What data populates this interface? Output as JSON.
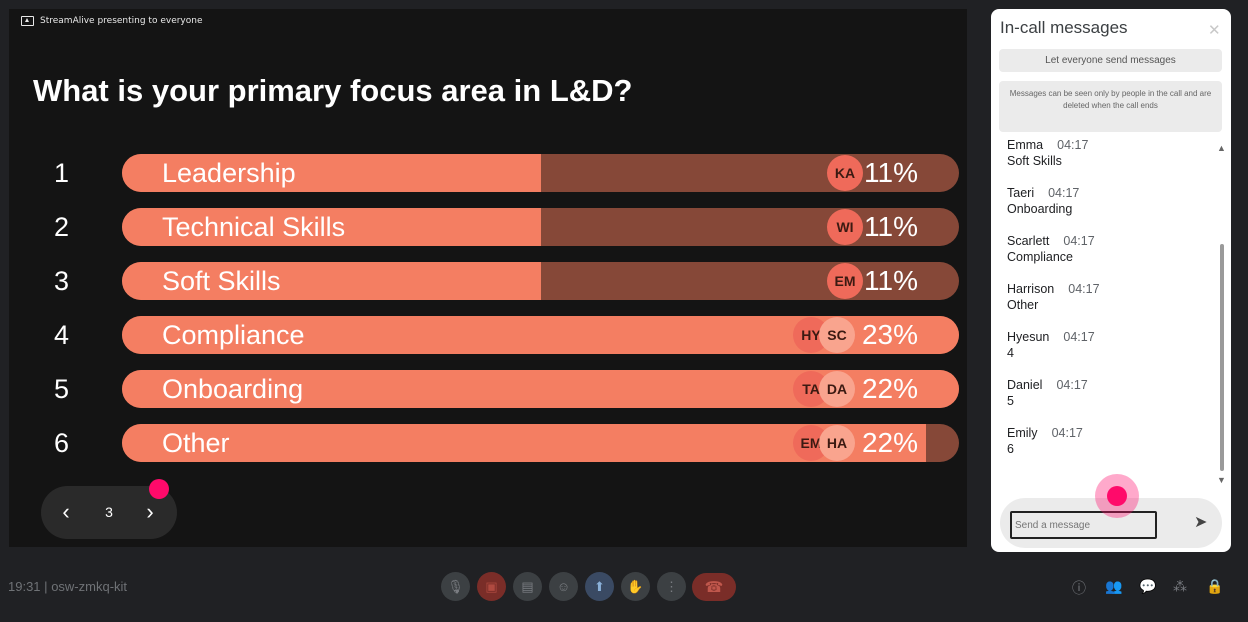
{
  "slide": {
    "presenting": "StreamAlive presenting to everyone",
    "question": "What is your primary focus area in L&D?",
    "options": [
      {
        "num": "1",
        "label": "Leadership",
        "pct": "11%",
        "fill": 0.5,
        "avatars": [
          "KA"
        ]
      },
      {
        "num": "2",
        "label": "Technical Skills",
        "pct": "11%",
        "fill": 0.5,
        "avatars": [
          "WI"
        ]
      },
      {
        "num": "3",
        "label": "Soft Skills",
        "pct": "11%",
        "fill": 0.5,
        "avatars": [
          "EM"
        ]
      },
      {
        "num": "4",
        "label": "Compliance",
        "pct": "23%",
        "fill": 1.0,
        "avatars": [
          "HY",
          "SC"
        ]
      },
      {
        "num": "5",
        "label": "Onboarding",
        "pct": "22%",
        "fill": 1.0,
        "avatars": [
          "TA",
          "DA"
        ]
      },
      {
        "num": "6",
        "label": "Other",
        "pct": "22%",
        "fill": 0.96,
        "avatars": [
          "EM",
          "HA"
        ]
      }
    ],
    "nav": {
      "prev": "‹",
      "page": "3",
      "next": "›"
    }
  },
  "panel": {
    "title": "In-call messages",
    "close": "✕",
    "toggle_label": "Let everyone send messages",
    "info": "Messages can be seen only by people in the call and are deleted when the call ends",
    "messages": [
      {
        "sender": "Emma",
        "time": "04:17",
        "text": "Soft Skills"
      },
      {
        "sender": "Taeri",
        "time": "04:17",
        "text": "Onboarding"
      },
      {
        "sender": "Scarlett",
        "time": "04:17",
        "text": "Compliance"
      },
      {
        "sender": "Harrison",
        "time": "04:17",
        "text": "Other"
      },
      {
        "sender": "Hyesun",
        "time": "04:17",
        "text": "4"
      },
      {
        "sender": "Daniel",
        "time": "04:17",
        "text": "5"
      },
      {
        "sender": "Emily",
        "time": "04:17",
        "text": "6"
      }
    ],
    "input_placeholder": "Send a message"
  },
  "bottom": {
    "time": "19:31",
    "separator": "|",
    "meeting_code": "osw-zmkq-kit"
  },
  "colors": {
    "bar_fill": "#f47e62",
    "bar_track": "#864838",
    "highlight": "#ff0a6a"
  }
}
